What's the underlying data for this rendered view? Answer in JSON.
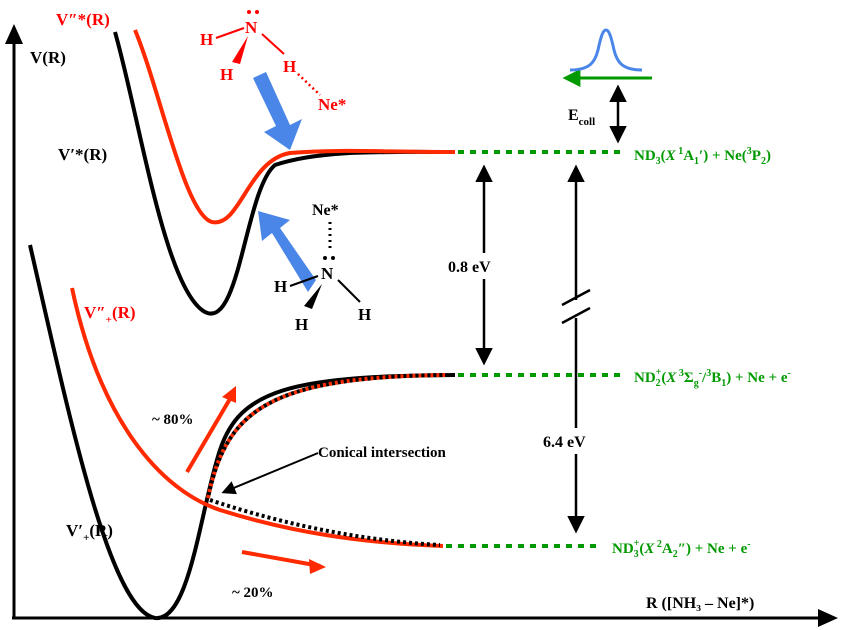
{
  "axes": {
    "y_label": "V(R)",
    "x_label": "R ([NH₃ – Ne]*)"
  },
  "curves": {
    "upper_red": {
      "name": "V″*(R)",
      "color": "#ff2a00"
    },
    "upper_black": {
      "name": "V′*(R)",
      "color": "#000000"
    },
    "ion_red": {
      "name_main": "V″",
      "name_sub": "+",
      "name_end": "(R)",
      "color": "#ff2a00"
    },
    "ion_black": {
      "name_main": "V′",
      "name_sub": "+",
      "name_end": "(R)",
      "color": "#000000"
    }
  },
  "asymptotes": {
    "neutral": {
      "color": "#009900",
      "parts": [
        "ND",
        "3",
        "(",
        "X",
        " 1",
        "A",
        "1",
        "′) + Ne(",
        "3",
        "P",
        "2",
        ")"
      ]
    },
    "nd2": {
      "color": "#009900",
      "parts": [
        "ND",
        "2",
        "+",
        "(",
        "X",
        " 3",
        "Σ",
        "g",
        "-",
        "/",
        "3",
        "B",
        "1",
        ") + Ne + e",
        "-"
      ]
    },
    "nd3": {
      "color": "#009900",
      "parts": [
        "ND",
        "3",
        "+",
        "(",
        "X",
        " 2",
        "A",
        "2",
        "″) + Ne + e",
        "-"
      ]
    }
  },
  "energies": {
    "gap_neutral_nd2": "0.8 eV",
    "gap_neutral_nd3": "6.4 eV",
    "collision_main": "E",
    "collision_sub": "coll"
  },
  "annotations": {
    "conical_intersection": "Conical intersection",
    "branch_up": "~ 80%",
    "branch_down": "~ 20%"
  },
  "molecule_top": {
    "color": "#ff0000",
    "n": "N",
    "h1": "H",
    "h2": "H",
    "h3": "H",
    "ne": "Ne*"
  },
  "molecule_mid": {
    "color": "#000000",
    "n": "N",
    "h1": "H",
    "h2": "H",
    "h3": "H",
    "ne": "Ne*"
  },
  "colors": {
    "arrow_blue": "#4a86e8",
    "wavepacket": "#4a86e8",
    "branch_arrow": "#ff2a00",
    "dotted_green": "#009900"
  }
}
